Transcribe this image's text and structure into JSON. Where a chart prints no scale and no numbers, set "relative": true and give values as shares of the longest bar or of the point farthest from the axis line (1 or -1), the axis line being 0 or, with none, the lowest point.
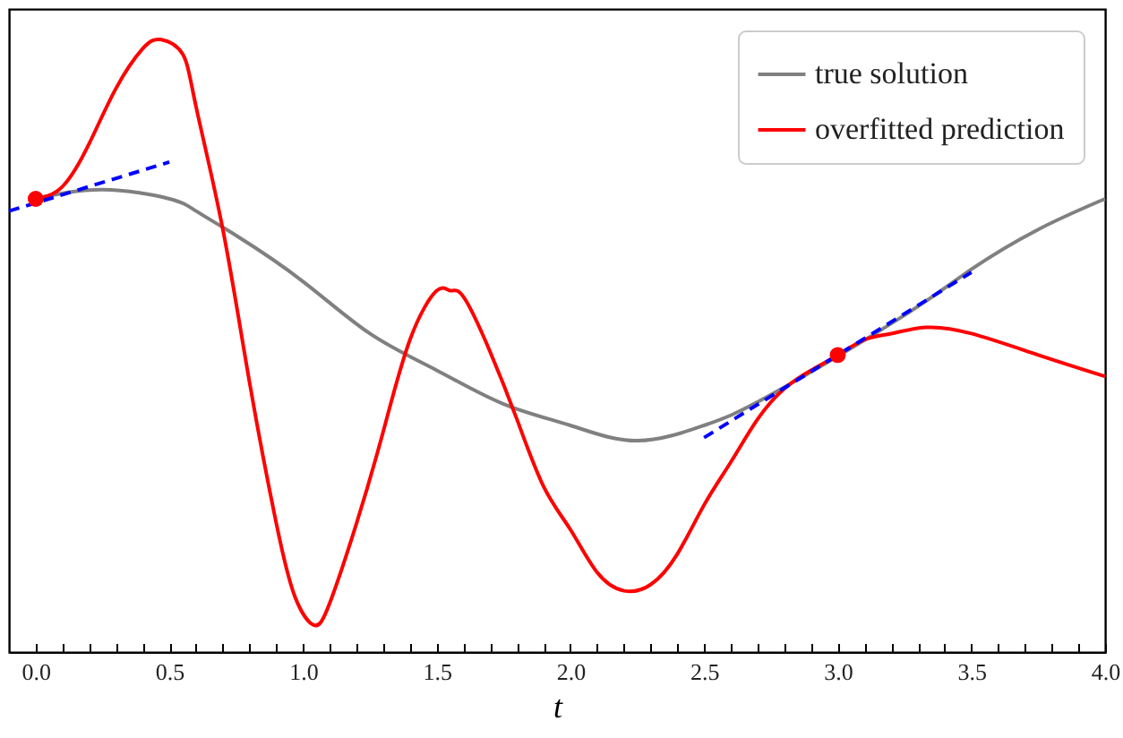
{
  "chart_data": {
    "type": "line",
    "xlabel": "t",
    "relative": true,
    "legend": "top right",
    "xlim": [
      -0.1,
      4.0
    ],
    "xticks": [
      {
        "value": 0,
        "label": "0.0"
      },
      {
        "value": 0.1,
        "label": null
      },
      {
        "value": 0.2,
        "label": null
      },
      {
        "value": 0.3,
        "label": null
      },
      {
        "value": 0.4,
        "label": null
      },
      {
        "value": 0.5,
        "label": "0.5"
      },
      {
        "value": 0.6,
        "label": null
      },
      {
        "value": 0.7,
        "label": null
      },
      {
        "value": 0.8,
        "label": null
      },
      {
        "value": 0.9,
        "label": null
      },
      {
        "value": 1,
        "label": "1.0"
      },
      {
        "value": 1.1,
        "label": null
      },
      {
        "value": 1.2,
        "label": null
      },
      {
        "value": 1.3,
        "label": null
      },
      {
        "value": 1.4,
        "label": null
      },
      {
        "value": 1.5,
        "label": "1.5"
      },
      {
        "value": 1.6,
        "label": null
      },
      {
        "value": 1.7,
        "label": null
      },
      {
        "value": 1.8,
        "label": null
      },
      {
        "value": 1.9,
        "label": null
      },
      {
        "value": 2,
        "label": "2.0"
      },
      {
        "value": 2.1,
        "label": null
      },
      {
        "value": 2.2,
        "label": null
      },
      {
        "value": 2.3,
        "label": null
      },
      {
        "value": 2.4,
        "label": null
      },
      {
        "value": 2.5,
        "label": "2.5"
      },
      {
        "value": 2.6,
        "label": null
      },
      {
        "value": 2.7,
        "label": null
      },
      {
        "value": 2.8,
        "label": null
      },
      {
        "value": 2.9,
        "label": null
      },
      {
        "value": 3,
        "label": "3.0"
      },
      {
        "value": 3.1,
        "label": null
      },
      {
        "value": 3.2,
        "label": null
      },
      {
        "value": 3.3,
        "label": null
      },
      {
        "value": 3.4,
        "label": null
      },
      {
        "value": 3.5,
        "label": "3.5"
      },
      {
        "value": 3.6,
        "label": null
      },
      {
        "value": 3.7,
        "label": null
      },
      {
        "value": 3.8,
        "label": null
      },
      {
        "value": 3.9,
        "label": null
      },
      {
        "value": 4,
        "label": "4.0"
      }
    ],
    "series": [
      {
        "name": "true solution",
        "color": "#808080",
        "line_style": "solid",
        "x": [
          0,
          0.25,
          0.5,
          0.6,
          0.75,
          1.0,
          1.25,
          1.5,
          1.75,
          2.0,
          2.25,
          2.5,
          2.75,
          3.25,
          3.5,
          3.75,
          4.0
        ],
        "values": [
          0.74,
          0.755,
          0.74,
          0.72,
          0.68,
          0.605,
          0.52,
          0.46,
          0.405,
          0.37,
          0.345,
          0.37,
          0.42,
          0.55,
          0.625,
          0.69,
          0.74
        ]
      },
      {
        "name": "overfitted prediction",
        "color": "#ff0000",
        "line_style": "solid",
        "x": [
          0,
          0.1,
          0.2,
          0.3,
          0.4,
          0.47,
          0.55,
          0.6,
          0.7,
          0.8,
          0.9,
          0.97,
          1.04,
          1.1,
          1.2,
          1.3,
          1.4,
          1.5,
          1.55,
          1.6,
          1.7,
          1.8,
          1.9,
          2.0,
          2.1,
          2.2,
          2.3,
          2.4,
          2.5,
          2.6,
          2.7,
          2.8,
          2.9,
          3.0,
          3.1,
          3.2,
          3.33,
          3.5,
          3.75,
          4.0
        ],
        "values": [
          0.74,
          0.76,
          0.83,
          0.92,
          0.985,
          1.0,
          0.976,
          0.89,
          0.69,
          0.44,
          0.21,
          0.09,
          0.044,
          0.08,
          0.21,
          0.36,
          0.51,
          0.59,
          0.59,
          0.58,
          0.49,
          0.38,
          0.27,
          0.2,
          0.13,
          0.1,
          0.11,
          0.16,
          0.24,
          0.31,
          0.38,
          0.43,
          0.46,
          0.485,
          0.51,
          0.52,
          0.53,
          0.52,
          0.485,
          0.45
        ]
      },
      {
        "color": "#0000ff",
        "line_style": "dashed",
        "x": [
          -0.1,
          0.5
        ],
        "values": [
          0.72,
          0.8
        ]
      },
      {
        "color": "#0000ff",
        "line_style": "dashed",
        "x": [
          2.5,
          3.5
        ],
        "values": [
          0.35,
          0.62
        ]
      },
      {
        "color": "#ff0000",
        "type": "scatter",
        "marker": "circle",
        "x": [
          0,
          3
        ],
        "values": [
          0.74,
          0.485
        ]
      }
    ]
  }
}
